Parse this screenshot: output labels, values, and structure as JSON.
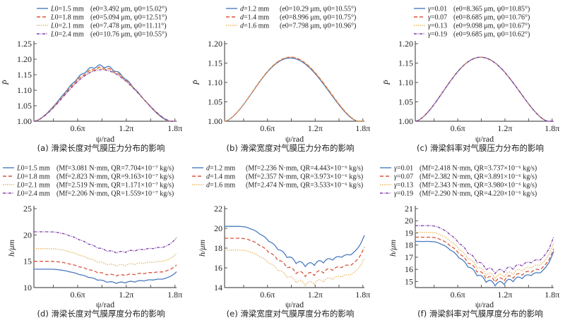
{
  "chart_data": [
    {
      "id": "a",
      "type": "line",
      "caption": "(a) 滑梁长度对气膜压力分布的影响",
      "xlabel": "ψ/rad",
      "ylabel": "P̄",
      "xticks": [
        "0.6π",
        "1.2π",
        "1.8π"
      ],
      "yticks": [
        "1.00",
        "1.05",
        "1.10",
        "1.15",
        "1.20",
        "1.25"
      ],
      "ylim": [
        1.0,
        1.25
      ],
      "xlim_pi": [
        0.06,
        1.82
      ],
      "legend_position": "top-right",
      "series": [
        {
          "name": "L0=1.5 mm",
          "var": "L",
          "varval": "0=1.5 mm",
          "params": "(e0=3.492 μm, ψ0=15.02°)",
          "color": "#4a7bbf",
          "dash": "solid",
          "peak": 1.178,
          "end_pi": 1.74
        },
        {
          "name": "L0=1.8 mm",
          "var": "L",
          "varval": "0=1.8 mm",
          "params": "(e0=5.094 μm, ψ0=12.51°)",
          "color": "#d9553a",
          "dash": "dashed",
          "peak": 1.172,
          "end_pi": 1.75
        },
        {
          "name": "L0=2.1 mm",
          "var": "L",
          "varval": "0=2.1 mm",
          "params": "(e0=7.478 μm, ψ0=11.11°)",
          "color": "#e8b760",
          "dash": "dotted",
          "peak": 1.169,
          "end_pi": 1.755
        },
        {
          "name": "L0=2.4 mm",
          "var": "L",
          "varval": "0=2.4 mm",
          "params": "(e0=10.76 μm, ψ0=10.55°)",
          "color": "#7e3ea8",
          "dash": "dashdot",
          "peak": 1.166,
          "end_pi": 1.76
        }
      ]
    },
    {
      "id": "b",
      "type": "line",
      "caption": "(b) 滑梁宽度对气膜压力分布的影响",
      "xlabel": "ψ/rad",
      "ylabel": "P̄",
      "xticks": [
        "0.6π",
        "1.2π",
        "1.8π"
      ],
      "yticks": [
        "1.00",
        "1.05",
        "1.10",
        "1.15",
        "1.20"
      ],
      "ylim": [
        1.0,
        1.2
      ],
      "xlim_pi": [
        0.06,
        1.82
      ],
      "legend_position": "top-right",
      "series": [
        {
          "name": "d=1.2 mm",
          "var": "d",
          "varval": "=1.2 mm",
          "params": "(e0=10.29 μm, ψ0=10.55°)",
          "color": "#4a7bbf",
          "dash": "solid",
          "peak": 1.163,
          "end_pi": 1.74
        },
        {
          "name": "d=1.4 mm",
          "var": "d",
          "varval": "=1.4 mm",
          "params": "(e0=8.996 μm, ψ0=10.75°)",
          "color": "#d9553a",
          "dash": "dashed",
          "peak": 1.165,
          "end_pi": 1.745
        },
        {
          "name": "d=1.6 mm",
          "var": "d",
          "varval": "=1.6 mm",
          "params": "(e0=7.798 μm, ψ0=10.96°)",
          "color": "#e8b760",
          "dash": "dotted",
          "peak": 1.166,
          "end_pi": 1.75
        }
      ]
    },
    {
      "id": "c",
      "type": "line",
      "caption": "(c) 滑梁斜率对气膜压力分布的影响",
      "xlabel": "ψ/rad",
      "ylabel": "P̄",
      "xticks": [
        "0.6π",
        "1.2π",
        "1.8π"
      ],
      "yticks": [
        "1.00",
        "1.05",
        "1.10",
        "1.15",
        "1.20"
      ],
      "ylim": [
        1.0,
        1.2
      ],
      "xlim_pi": [
        0.06,
        1.82
      ],
      "legend_position": "top-right",
      "series": [
        {
          "name": "γ=0.01",
          "var": "γ",
          "varval": "=0.01",
          "params": "(e0=8.365 μm, ψ0=10.85°)",
          "color": "#4a7bbf",
          "dash": "solid",
          "peak": 1.165,
          "end_pi": 1.75
        },
        {
          "name": "γ=0.07",
          "var": "γ",
          "varval": "=0.07",
          "params": "(e0=8.685 μm, ψ0=10.76°)",
          "color": "#d9553a",
          "dash": "dashed",
          "peak": 1.165,
          "end_pi": 1.75
        },
        {
          "name": "γ=0.13",
          "var": "γ",
          "varval": "=0.13",
          "params": "(e0=9.098 μm, ψ0=10.67°)",
          "color": "#e8b760",
          "dash": "dotted",
          "peak": 1.165,
          "end_pi": 1.75
        },
        {
          "name": "γ=0.19",
          "var": "γ",
          "varval": "=0.19",
          "params": "(e0=9.685 μm, ψ0=10.62°)",
          "color": "#7e3ea8",
          "dash": "dashdot",
          "peak": 1.165,
          "end_pi": 1.75
        }
      ]
    },
    {
      "id": "d",
      "type": "line",
      "caption": "(d) 滑梁长度对气膜厚度分布的影响",
      "xlabel": "ψ/rad",
      "ylabel": "h/μm",
      "xticks": [
        "0.6π",
        "1.2π",
        "1.8π"
      ],
      "yticks": [
        "10",
        "15",
        "20",
        "25"
      ],
      "ylim": [
        10,
        25
      ],
      "xlim_pi": [
        0.06,
        1.82
      ],
      "legend_position": "top-right",
      "series": [
        {
          "name": "L0=1.5 mm",
          "var": "L",
          "varval": "0=1.5 mm",
          "params": "(Mf=3.081 N·mm, QR=7.704×10⁻⁷ kg/s)",
          "color": "#4a7bbf",
          "dash": "solid",
          "start": 13.5,
          "min": 10.9,
          "end": 13.0,
          "ripple": 0.25
        },
        {
          "name": "L0=1.8 mm",
          "var": "L",
          "varval": "0=1.8 mm",
          "params": "(Mf=2.823 N·mm, QR=9.163×10⁻⁷ kg/s)",
          "color": "#d9553a",
          "dash": "dashed",
          "start": 15.0,
          "min": 12.3,
          "end": 14.3,
          "ripple": 0.25
        },
        {
          "name": "L0=2.1 mm",
          "var": "L",
          "varval": "0=2.1 mm",
          "params": "(Mf=2.519 N·mm, QR=1.171×10⁻⁷ kg/s)",
          "color": "#e8b760",
          "dash": "dotted",
          "start": 17.4,
          "min": 14.2,
          "end": 16.5,
          "ripple": 0.3
        },
        {
          "name": "L0=2.4 mm",
          "var": "L",
          "varval": "0=2.4 mm",
          "params": "(Mf=2.206 N·mm, QR=1.559×10⁻⁷ kg/s)",
          "color": "#7e3ea8",
          "dash": "dashdot",
          "start": 20.6,
          "min": 16.7,
          "end": 19.5,
          "ripple": 0.3
        }
      ]
    },
    {
      "id": "e",
      "type": "line",
      "caption": "(e) 滑梁宽度对气膜厚度分布的影响",
      "xlabel": "ψ/rad",
      "ylabel": "h/μm",
      "xticks": [
        "0.6π",
        "1.2π",
        "1.8π"
      ],
      "yticks": [
        "14",
        "16",
        "18",
        "20",
        "22"
      ],
      "ylim": [
        14,
        22
      ],
      "xlim_pi": [
        0.06,
        1.82
      ],
      "legend_position": "top-right",
      "series": [
        {
          "name": "d=1.2 mm",
          "var": "d",
          "varval": "=1.2 mm",
          "params": "(Mf=2.236 N·mm, QR=4.443×10⁻⁶ kg/s)",
          "color": "#4a7bbf",
          "dash": "solid",
          "start": 20.2,
          "min": 16.3,
          "end": 19.3,
          "ripple": 0.4
        },
        {
          "name": "d=1.4 mm",
          "var": "d",
          "varval": "=1.4 mm",
          "params": "(Mf=2.357 N·mm, QR=3.973×10⁻⁶ kg/s)",
          "color": "#d9553a",
          "dash": "dashed",
          "start": 19.0,
          "min": 15.3,
          "end": 18.1,
          "ripple": 0.4
        },
        {
          "name": "d=1.6 mm",
          "var": "d",
          "varval": "=1.6 mm",
          "params": "(Mf=2.474 N·mm, QR=3.533×10⁻⁶ kg/s)",
          "color": "#e8b760",
          "dash": "dotted",
          "start": 17.8,
          "min": 14.4,
          "end": 17.0,
          "ripple": 0.4
        }
      ]
    },
    {
      "id": "f",
      "type": "line",
      "caption": "(f) 滑梁斜率对气膜厚度分布的影响",
      "xlabel": "ψ/rad",
      "ylabel": "h/μm",
      "xticks": [
        "0.6π",
        "1.2π",
        "1.8π"
      ],
      "yticks": [
        "15",
        "16",
        "17",
        "18",
        "19",
        "20",
        "21"
      ],
      "ylim": [
        14.5,
        21
      ],
      "xlim_pi": [
        0.06,
        1.82
      ],
      "legend_position": "top-right",
      "series": [
        {
          "name": "γ=0.01",
          "var": "γ",
          "varval": "=0.01",
          "params": "(Mf=2.418 N·mm, QR=3.737×10⁻⁶ kg/s)",
          "color": "#4a7bbf",
          "dash": "solid",
          "start": 18.3,
          "min": 14.8,
          "end": 17.5,
          "ripple": 0.35
        },
        {
          "name": "γ=0.07",
          "var": "γ",
          "varval": "=0.07",
          "params": "(Mf=2.382 N·mm, QR=3.891×10⁻⁶ kg/s)",
          "color": "#d9553a",
          "dash": "dashed",
          "start": 18.65,
          "min": 15.1,
          "end": 17.7,
          "ripple": 0.35
        },
        {
          "name": "γ=0.13",
          "var": "γ",
          "varval": "=0.13",
          "params": "(Mf=2.343 N·mm, QR=3.980×10⁻⁶ kg/s)",
          "color": "#e8b760",
          "dash": "dotted",
          "start": 19.05,
          "min": 15.4,
          "end": 18.2,
          "ripple": 0.35
        },
        {
          "name": "γ=0.19",
          "var": "γ",
          "varval": "=0.19",
          "params": "(Mf=2.290 N·mm, QR=4.220×10⁻⁶ kg/s)",
          "color": "#7e3ea8",
          "dash": "dashdot",
          "start": 19.6,
          "min": 15.8,
          "end": 18.7,
          "ripple": 0.35
        }
      ]
    }
  ]
}
